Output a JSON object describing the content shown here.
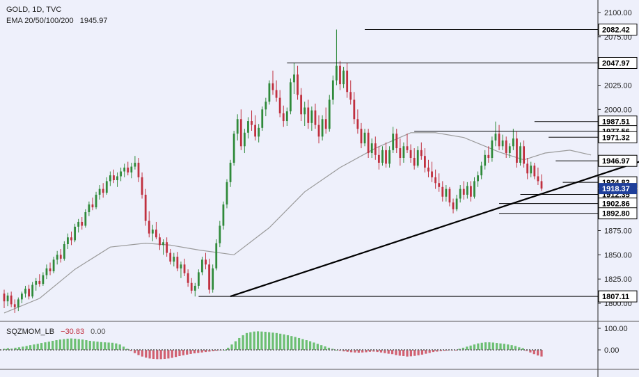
{
  "legend": {
    "symbol": "GOLD, 1D, TVC",
    "ema_label": "EMA 20/50/100/200",
    "ema_value": "1945.97",
    "osc_label": "SQZMOM_LB",
    "osc_value1": "−30.83",
    "osc_value2": "0.00"
  },
  "colors": {
    "background": "#eef0fb",
    "up": "#2f8a3a",
    "down": "#c0303f",
    "ema": "#9a9a9a",
    "trendline": "#000000",
    "osc_pos": "#6cbf72",
    "osc_neg": "#d16070",
    "current_badge": "#1f3f9a"
  },
  "chart_data": [
    {
      "type": "candlestick",
      "title": "GOLD, 1D, TVC",
      "ylim": [
        1800,
        2100
      ],
      "y_ticks": [
        1800,
        1825,
        1850,
        1875,
        1900,
        1925,
        1950,
        1975,
        2000,
        2025,
        2050,
        2075,
        2100
      ],
      "y_tick_labels": [
        "1800.00",
        "1825.00",
        "1850.00",
        "1875.00",
        "1900.00",
        "1925.00",
        "1950.00",
        "1975.00",
        "2000.00",
        "2025.00",
        "2050.00",
        "2075.00",
        "2100.00"
      ],
      "hidden_ticks": [
        1800,
        1900,
        1925,
        1950,
        1975,
        2050,
        2075,
        2100
      ],
      "price_lines": [
        {
          "label": "2082.42",
          "value": 2082.42,
          "x_from": 102
        },
        {
          "label": "2047.97",
          "value": 2047.97,
          "x_from": 80
        },
        {
          "label": "1987.51",
          "value": 1987.51,
          "x_from": 150
        },
        {
          "label": "1977.56",
          "value": 1977.56,
          "x_from": 116
        },
        {
          "label": "1971.32",
          "value": 1971.32,
          "x_from": 154
        },
        {
          "label": "1946.97",
          "value": 1946.97,
          "x_from": 156
        },
        {
          "label": "1924.82",
          "value": 1924.82,
          "x_from": 158
        },
        {
          "label": "1912.35",
          "value": 1912.35,
          "x_from": 146
        },
        {
          "label": "1902.86",
          "value": 1902.86,
          "x_from": 140
        },
        {
          "label": "1892.80",
          "value": 1892.8,
          "x_from": 140
        },
        {
          "label": "1807.11",
          "value": 1807.11,
          "x_from": 55
        }
      ],
      "current_price": {
        "label": "1918.37",
        "value": 1918.37
      },
      "trendline": [
        {
          "x": 64,
          "y": 1807.11
        },
        {
          "x": 180,
          "y": 1946.5
        }
      ],
      "ema_line": [
        [
          0,
          1790
        ],
        [
          10,
          1805
        ],
        [
          20,
          1835
        ],
        [
          30,
          1858
        ],
        [
          40,
          1862
        ],
        [
          47,
          1860
        ],
        [
          55,
          1855
        ],
        [
          65,
          1850
        ],
        [
          75,
          1878
        ],
        [
          85,
          1915
        ],
        [
          95,
          1940
        ],
        [
          105,
          1960
        ],
        [
          115,
          1976
        ],
        [
          122,
          1976
        ],
        [
          130,
          1971
        ],
        [
          140,
          1956
        ],
        [
          147,
          1948
        ],
        [
          153,
          1955
        ],
        [
          160,
          1958
        ],
        [
          166,
          1953
        ]
      ],
      "candles_ohlc": [
        [
          1810,
          1814,
          1795,
          1802
        ],
        [
          1802,
          1811,
          1797,
          1808
        ],
        [
          1808,
          1812,
          1796,
          1799
        ],
        [
          1799,
          1804,
          1790,
          1796
        ],
        [
          1796,
          1806,
          1792,
          1804
        ],
        [
          1804,
          1812,
          1800,
          1810
        ],
        [
          1810,
          1818,
          1806,
          1815
        ],
        [
          1815,
          1819,
          1804,
          1807
        ],
        [
          1807,
          1822,
          1805,
          1819
        ],
        [
          1819,
          1826,
          1813,
          1823
        ],
        [
          1823,
          1830,
          1817,
          1820
        ],
        [
          1820,
          1832,
          1818,
          1829
        ],
        [
          1829,
          1840,
          1825,
          1836
        ],
        [
          1836,
          1842,
          1829,
          1833
        ],
        [
          1833,
          1848,
          1831,
          1845
        ],
        [
          1845,
          1854,
          1840,
          1850
        ],
        [
          1850,
          1856,
          1842,
          1846
        ],
        [
          1846,
          1864,
          1844,
          1861
        ],
        [
          1861,
          1872,
          1856,
          1868
        ],
        [
          1868,
          1874,
          1860,
          1865
        ],
        [
          1865,
          1882,
          1863,
          1879
        ],
        [
          1879,
          1887,
          1873,
          1884
        ],
        [
          1884,
          1889,
          1876,
          1880
        ],
        [
          1880,
          1897,
          1878,
          1894
        ],
        [
          1894,
          1905,
          1890,
          1902
        ],
        [
          1902,
          1909,
          1896,
          1899
        ],
        [
          1899,
          1915,
          1897,
          1912
        ],
        [
          1912,
          1922,
          1907,
          1918
        ],
        [
          1918,
          1924,
          1909,
          1914
        ],
        [
          1914,
          1930,
          1912,
          1926
        ],
        [
          1926,
          1936,
          1921,
          1932
        ],
        [
          1932,
          1938,
          1924,
          1927
        ],
        [
          1927,
          1935,
          1920,
          1931
        ],
        [
          1931,
          1940,
          1926,
          1936
        ],
        [
          1936,
          1944,
          1930,
          1940
        ],
        [
          1940,
          1946,
          1932,
          1935
        ],
        [
          1935,
          1945,
          1929,
          1941
        ],
        [
          1941,
          1952,
          1938,
          1945
        ],
        [
          1945,
          1950,
          1925,
          1930
        ],
        [
          1930,
          1935,
          1908,
          1912
        ],
        [
          1912,
          1918,
          1880,
          1885
        ],
        [
          1885,
          1895,
          1868,
          1872
        ],
        [
          1872,
          1881,
          1864,
          1876
        ],
        [
          1876,
          1884,
          1866,
          1868
        ],
        [
          1868,
          1872,
          1855,
          1860
        ],
        [
          1860,
          1866,
          1850,
          1863
        ],
        [
          1863,
          1868,
          1848,
          1852
        ],
        [
          1852,
          1856,
          1840,
          1843
        ],
        [
          1843,
          1852,
          1838,
          1848
        ],
        [
          1848,
          1853,
          1833,
          1836
        ],
        [
          1836,
          1843,
          1826,
          1840
        ],
        [
          1840,
          1846,
          1828,
          1831
        ],
        [
          1831,
          1835,
          1817,
          1821
        ],
        [
          1821,
          1826,
          1810,
          1813
        ],
        [
          1813,
          1821,
          1807,
          1818
        ],
        [
          1818,
          1835,
          1815,
          1832
        ],
        [
          1832,
          1848,
          1829,
          1845
        ],
        [
          1845,
          1852,
          1835,
          1840
        ],
        [
          1840,
          1846,
          1810,
          1814
        ],
        [
          1814,
          1840,
          1811,
          1836
        ],
        [
          1836,
          1866,
          1834,
          1862
        ],
        [
          1862,
          1885,
          1858,
          1880
        ],
        [
          1880,
          1905,
          1876,
          1902
        ],
        [
          1902,
          1928,
          1898,
          1925
        ],
        [
          1925,
          1948,
          1920,
          1945
        ],
        [
          1945,
          1978,
          1942,
          1975
        ],
        [
          1975,
          1995,
          1968,
          1990
        ],
        [
          1990,
          2000,
          1958,
          1962
        ],
        [
          1962,
          1980,
          1955,
          1976
        ],
        [
          1976,
          1992,
          1970,
          1988
        ],
        [
          1988,
          1999,
          1978,
          1984
        ],
        [
          1984,
          1994,
          1968,
          1972
        ],
        [
          1972,
          1985,
          1966,
          1981
        ],
        [
          1981,
          2003,
          1978,
          2000
        ],
        [
          2000,
          2012,
          1993,
          2008
        ],
        [
          2008,
          2030,
          2005,
          2027
        ],
        [
          2027,
          2040,
          2015,
          2020
        ],
        [
          2020,
          2030,
          2008,
          2012
        ],
        [
          2012,
          2020,
          1992,
          1996
        ],
        [
          1996,
          2004,
          1982,
          1988
        ],
        [
          1988,
          2002,
          1983,
          1998
        ],
        [
          1998,
          2032,
          1995,
          2028
        ],
        [
          2028,
          2048,
          2016,
          2036
        ],
        [
          2036,
          2045,
          2010,
          2015
        ],
        [
          2015,
          2022,
          1988,
          1995
        ],
        [
          1995,
          2008,
          1983,
          2002
        ],
        [
          2002,
          2010,
          1980,
          1986
        ],
        [
          1986,
          2003,
          1978,
          1999
        ],
        [
          1999,
          2006,
          1980,
          1984
        ],
        [
          1984,
          1994,
          1965,
          1972
        ],
        [
          1972,
          1994,
          1968,
          1990
        ],
        [
          1990,
          2002,
          1975,
          1980
        ],
        [
          1980,
          2015,
          1977,
          2010
        ],
        [
          2010,
          2035,
          2005,
          2030
        ],
        [
          2030,
          2082.42,
          2025,
          2045
        ],
        [
          2045,
          2050,
          2020,
          2026
        ],
        [
          2026,
          2044,
          2022,
          2040
        ],
        [
          2040,
          2048,
          2012,
          2018
        ],
        [
          2018,
          2030,
          2005,
          2010
        ],
        [
          2010,
          2018,
          1985,
          1990
        ],
        [
          1990,
          2000,
          1975,
          1980
        ],
        [
          1980,
          1986,
          1960,
          1965
        ],
        [
          1965,
          1980,
          1962,
          1976
        ],
        [
          1976,
          1980,
          1950,
          1955
        ],
        [
          1955,
          1970,
          1950,
          1965
        ],
        [
          1965,
          1972,
          1948,
          1953
        ],
        [
          1953,
          1962,
          1938,
          1945
        ],
        [
          1945,
          1962,
          1942,
          1958
        ],
        [
          1958,
          1966,
          1940,
          1944
        ],
        [
          1944,
          1962,
          1940,
          1958
        ],
        [
          1958,
          1982,
          1955,
          1975
        ],
        [
          1975,
          1980,
          1955,
          1960
        ],
        [
          1960,
          1970,
          1942,
          1950
        ],
        [
          1950,
          1966,
          1945,
          1962
        ],
        [
          1962,
          1975,
          1955,
          1958
        ],
        [
          1958,
          1964,
          1945,
          1950
        ],
        [
          1950,
          1960,
          1938,
          1942
        ],
        [
          1942,
          1962,
          1940,
          1958
        ],
        [
          1958,
          1966,
          1948,
          1952
        ],
        [
          1952,
          1960,
          1935,
          1940
        ],
        [
          1940,
          1948,
          1930,
          1936
        ],
        [
          1936,
          1946,
          1925,
          1930
        ],
        [
          1930,
          1938,
          1918,
          1924
        ],
        [
          1924,
          1934,
          1915,
          1920
        ],
        [
          1920,
          1926,
          1905,
          1910
        ],
        [
          1910,
          1922,
          1905,
          1918
        ],
        [
          1918,
          1920,
          1900,
          1904
        ],
        [
          1904,
          1908,
          1892.8,
          1897
        ],
        [
          1897,
          1912,
          1895,
          1908
        ],
        [
          1908,
          1922,
          1904,
          1918
        ],
        [
          1918,
          1926,
          1907,
          1912
        ],
        [
          1912,
          1925,
          1908,
          1921
        ],
        [
          1921,
          1926,
          1905,
          1910
        ],
        [
          1910,
          1930,
          1908,
          1926
        ],
        [
          1926,
          1936,
          1920,
          1932
        ],
        [
          1932,
          1946,
          1928,
          1942
        ],
        [
          1942,
          1958,
          1938,
          1953
        ],
        [
          1953,
          1962,
          1945,
          1950
        ],
        [
          1950,
          1972,
          1946,
          1968
        ],
        [
          1968,
          1987.51,
          1962,
          1975
        ],
        [
          1975,
          1984,
          1958,
          1962
        ],
        [
          1962,
          1974,
          1958,
          1968
        ],
        [
          1968,
          1972,
          1950,
          1955
        ],
        [
          1955,
          1965,
          1950,
          1962
        ],
        [
          1962,
          1980,
          1958,
          1970
        ],
        [
          1970,
          1977,
          1940,
          1945
        ],
        [
          1945,
          1966,
          1942,
          1962
        ],
        [
          1962,
          1968,
          1940,
          1944
        ],
        [
          1944,
          1950,
          1928,
          1934
        ],
        [
          1934,
          1946,
          1930,
          1942
        ],
        [
          1942,
          1945,
          1928,
          1931
        ],
        [
          1931,
          1940,
          1922,
          1926
        ],
        [
          1926,
          1933,
          1916,
          1918.37
        ]
      ]
    },
    {
      "type": "bar",
      "title": "SQZMOM_LB",
      "ylim": [
        -45,
        120
      ],
      "y_tick_labels": [
        "100.00",
        "0.00"
      ],
      "values": [
        5,
        8,
        6,
        10,
        12,
        15,
        18,
        22,
        25,
        28,
        32,
        35,
        38,
        42,
        45,
        48,
        50,
        52,
        53,
        52,
        50,
        48,
        45,
        42,
        40,
        38,
        36,
        35,
        34,
        33,
        30,
        25,
        15,
        5,
        -5,
        -15,
        -24,
        -31,
        -36,
        -40,
        -42,
        -43,
        -43,
        -42,
        -40,
        -37,
        -33,
        -29,
        -25,
        -22,
        -19,
        -16,
        -14,
        -12,
        -10,
        -8,
        -6,
        -4,
        -2,
        0,
        10,
        25,
        40,
        55,
        68,
        78,
        82,
        85,
        86,
        85,
        84,
        82,
        80,
        78,
        75,
        72,
        68,
        64,
        60,
        55,
        50,
        45,
        40,
        34,
        28,
        22,
        16,
        10,
        5,
        0,
        -4,
        -7,
        -9,
        -11,
        -12,
        -13,
        -12,
        -11,
        -9,
        -8,
        -10,
        -12,
        -15,
        -18,
        -20,
        -24,
        -27,
        -29,
        -31,
        -30,
        -28,
        -25,
        -22,
        -18,
        -14,
        -10,
        -8,
        -6,
        -4,
        -3,
        -2,
        -1,
        5,
        10,
        15,
        20,
        25,
        30,
        33,
        35,
        35,
        34,
        32,
        30,
        28,
        25,
        22,
        18,
        12,
        8,
        -5,
        -12,
        -20,
        -26,
        -30.83
      ]
    }
  ]
}
